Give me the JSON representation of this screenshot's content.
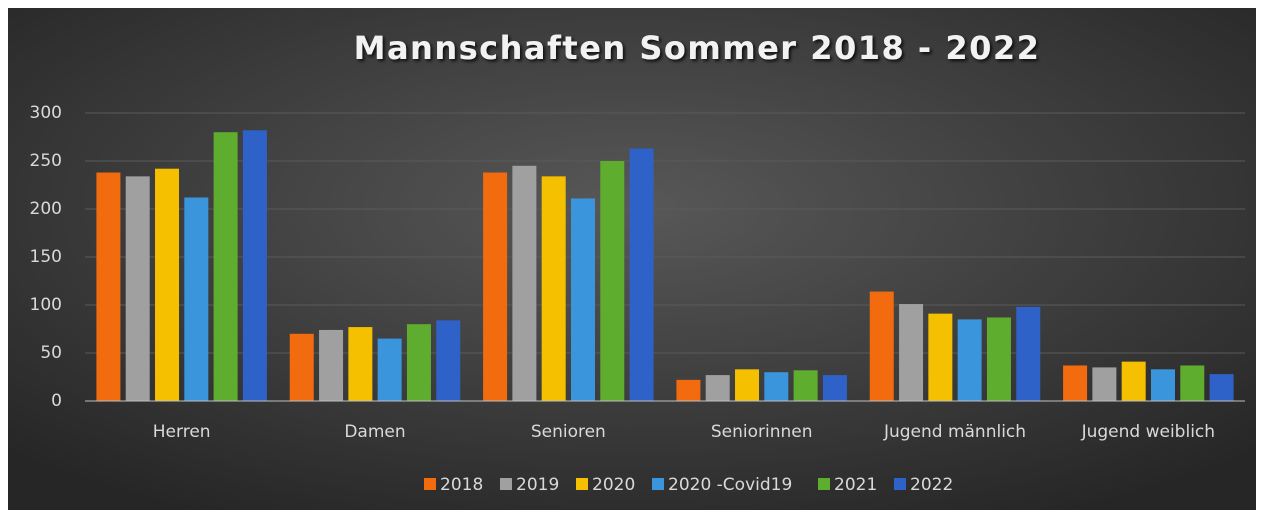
{
  "chart_data": {
    "type": "bar",
    "title": "Mannschaften Sommer 2018 - 2022",
    "categories": [
      "Herren",
      "Damen",
      "Senioren",
      "Seniorinnen",
      "Jugend männlich",
      "Jugend weiblich"
    ],
    "series": [
      {
        "name": "2018",
        "color": "#f26b0f",
        "values": [
          238,
          70,
          238,
          22,
          114,
          37
        ]
      },
      {
        "name": "2019",
        "color": "#a0a0a0",
        "values": [
          234,
          74,
          245,
          27,
          101,
          35
        ]
      },
      {
        "name": "2020",
        "color": "#f5c000",
        "values": [
          242,
          77,
          234,
          33,
          91,
          41
        ]
      },
      {
        "name": "2020 -Covid19",
        "color": "#3b95dd",
        "values": [
          212,
          65,
          211,
          30,
          85,
          33
        ]
      },
      {
        "name": "2021",
        "color": "#5fad2f",
        "values": [
          280,
          80,
          250,
          32,
          87,
          37
        ]
      },
      {
        "name": "2022",
        "color": "#2e62c8",
        "values": [
          282,
          84,
          263,
          27,
          98,
          28
        ]
      }
    ],
    "ylim": [
      0,
      300
    ],
    "yticks": [
      0,
      50,
      100,
      150,
      200,
      250,
      300
    ],
    "grid": true
  }
}
